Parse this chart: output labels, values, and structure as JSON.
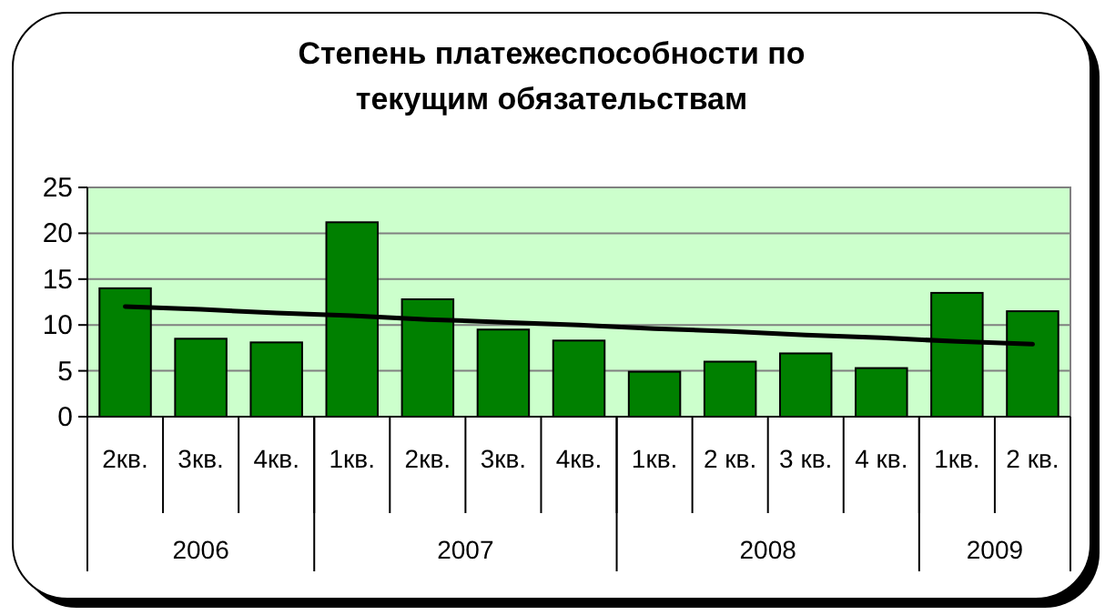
{
  "chart_data": {
    "type": "bar",
    "title": "Степень платежеспособности по текущим обязательствам",
    "categories": [
      "2кв.",
      "3кв.",
      "4кв.",
      "1кв.",
      "2кв.",
      "3кв.",
      "4кв.",
      "1кв.",
      "2 кв.",
      "3 кв.",
      "4 кв.",
      "1кв.",
      "2 кв."
    ],
    "series": [
      {
        "color": "#008000",
        "values": [
          14,
          8.5,
          8.1,
          21.2,
          12.8,
          9.5,
          8.3,
          4.9,
          6,
          6.9,
          5.3,
          13.5,
          11.5
        ]
      },
      {
        "type": "line",
        "color": "#000000",
        "values": [
          12,
          11.7,
          11.3,
          11,
          10.6,
          10.3,
          10,
          9.6,
          9.3,
          8.9,
          8.6,
          8.2,
          7.9
        ]
      }
    ],
    "ylim": [
      0,
      25
    ],
    "yticks": [
      0,
      5,
      10,
      15,
      20,
      25
    ],
    "grid": "y",
    "annotations": [
      "2006",
      "2007",
      "2008",
      "2009"
    ]
  }
}
